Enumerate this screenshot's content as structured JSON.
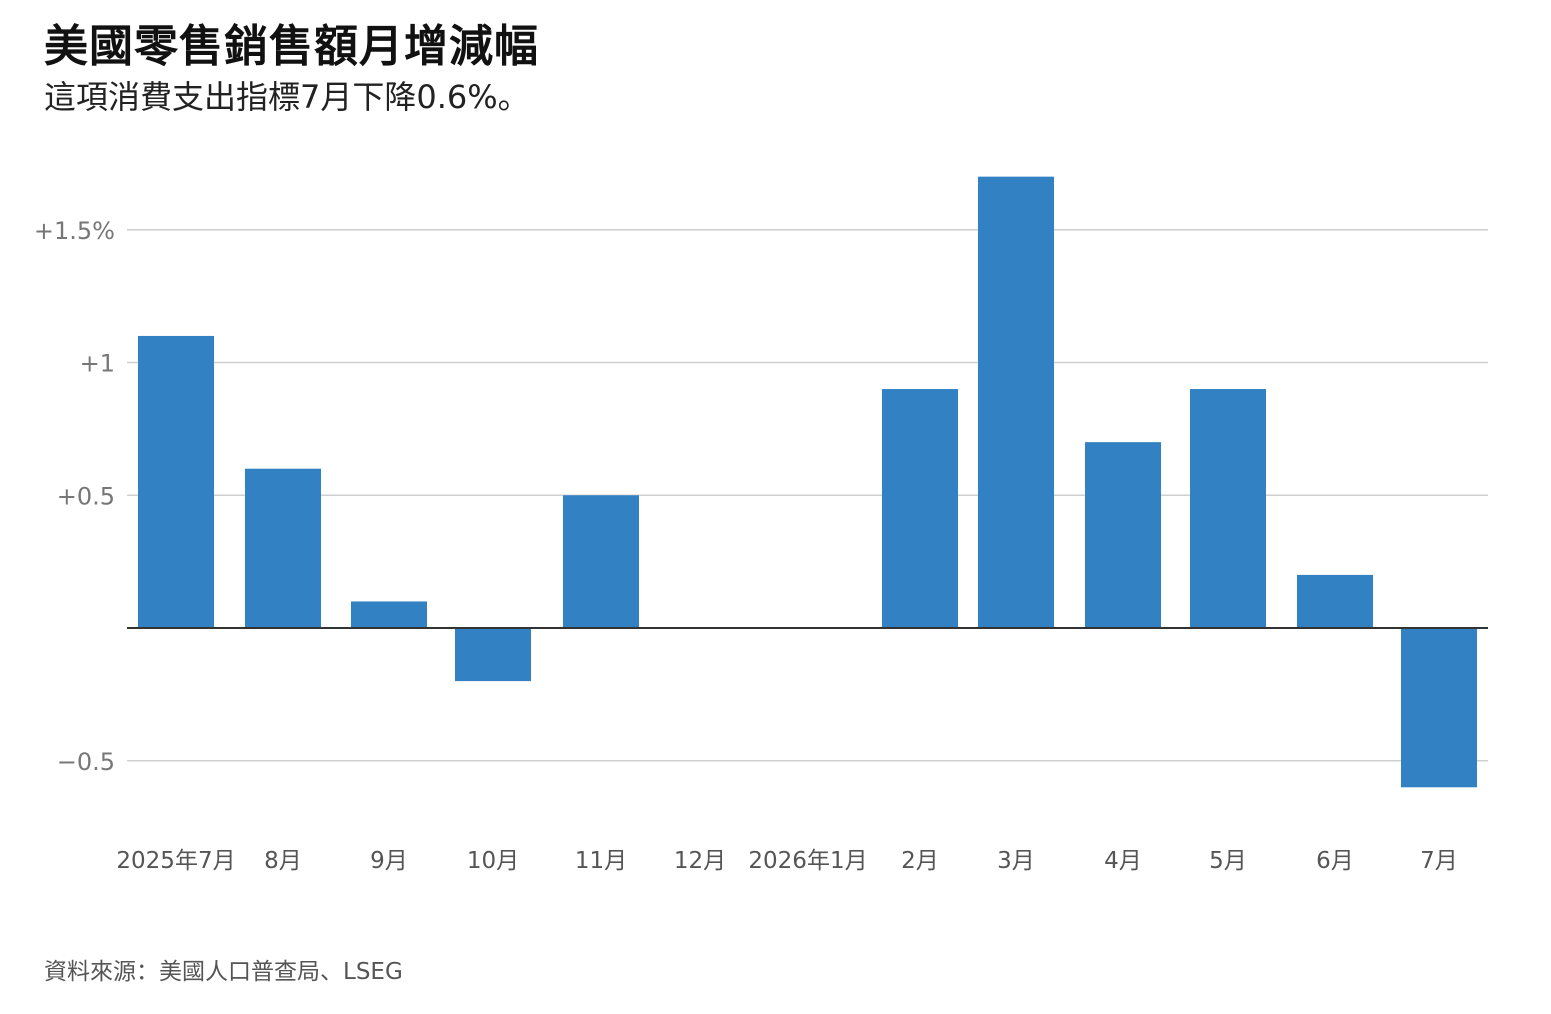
{
  "title": "美國零售銷售額月增減幅",
  "subtitle": "這項消費支出指標7月下降0.6%。",
  "source": "資料來源：美國人口普查局、LSEG",
  "colors": {
    "bar": "#3282c3",
    "gridline": "#cfcfcf",
    "zero_line": "#333333"
  },
  "chart_data": {
    "type": "bar",
    "categories": [
      "2025年7月",
      "8月",
      "9月",
      "10月",
      "11月",
      "12月",
      "2026年1月",
      "2月",
      "3月",
      "4月",
      "5月",
      "6月",
      "7月"
    ],
    "values": [
      1.1,
      0.6,
      0.1,
      -0.2,
      0.5,
      0.0,
      0.0,
      0.9,
      1.7,
      0.7,
      0.9,
      0.2,
      -0.6
    ],
    "yticks": [
      {
        "value": 1.5,
        "label": "+1.5%"
      },
      {
        "value": 1.0,
        "label": "+1"
      },
      {
        "value": 0.5,
        "label": "+0.5"
      },
      {
        "value": -0.5,
        "label": "−0.5"
      }
    ],
    "ylim": [
      -0.6,
      1.7
    ],
    "grid": true,
    "unit": "%"
  }
}
